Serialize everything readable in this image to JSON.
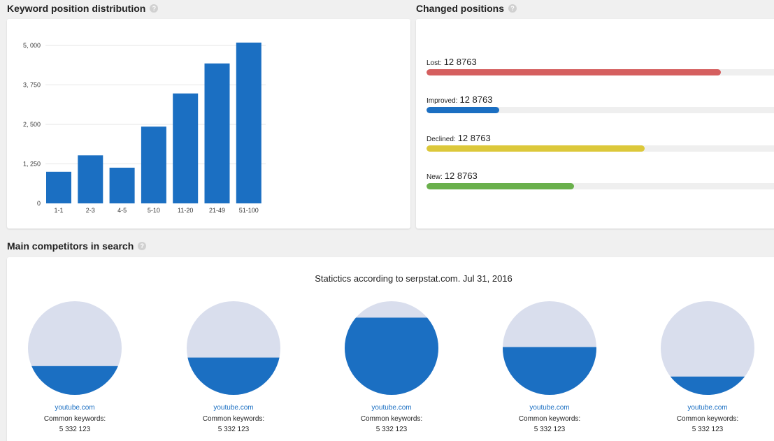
{
  "keyword_distribution": {
    "title": "Keyword position distribution",
    "help": "?"
  },
  "chart_data": {
    "type": "bar",
    "categories": [
      "1-1",
      "2-3",
      "4-5",
      "5-10",
      "11-20",
      "21-49",
      "51-100"
    ],
    "values": [
      1000,
      1520,
      1130,
      2430,
      3480,
      4430,
      5090
    ],
    "yticks": [
      "0",
      "1, 250",
      "2, 500",
      "3, 750",
      "5, 000"
    ],
    "ytick_values": [
      0,
      1250,
      2500,
      3750,
      5000
    ],
    "ylim": [
      0,
      5000
    ],
    "grid": true,
    "colors": {
      "bar": "#1b6fc2",
      "grid": "#e6e6e6"
    }
  },
  "changed_positions": {
    "title": "Changed positions",
    "help": "?",
    "items": [
      {
        "label": "Lost:",
        "value": "12 8763",
        "fraction": 0.81,
        "color": "#d55f5f"
      },
      {
        "label": "Improved:",
        "value": "12 8763",
        "fraction": 0.2,
        "color": "#1b6fc2"
      },
      {
        "label": "Declined:",
        "value": "12 8763",
        "fraction": 0.6,
        "color": "#dcc83a"
      },
      {
        "label": "New:",
        "value": "12 8763",
        "fraction": 0.405,
        "color": "#6ab04c"
      }
    ]
  },
  "competitors": {
    "title": "Main competitors in search",
    "help": "?",
    "stat_text": "Statictics according to serpstat.com. Jul 31, 2016",
    "colors": {
      "fill": "#1b6fc2",
      "empty": "#d9deed"
    },
    "items": [
      {
        "domain": "youtube.com",
        "label": "Common keywords:",
        "value": "5 332 123",
        "fill_fraction": 0.31
      },
      {
        "domain": "youtube.com",
        "label": "Common keywords:",
        "value": "5 332 123",
        "fill_fraction": 0.4
      },
      {
        "domain": "youtube.com",
        "label": "Common keywords:",
        "value": "5 332 123",
        "fill_fraction": 0.82
      },
      {
        "domain": "youtube.com",
        "label": "Common keywords:",
        "value": "5 332 123",
        "fill_fraction": 0.51
      },
      {
        "domain": "youtube.com",
        "label": "Common keywords:",
        "value": "5 332 123",
        "fill_fraction": 0.2
      }
    ]
  }
}
